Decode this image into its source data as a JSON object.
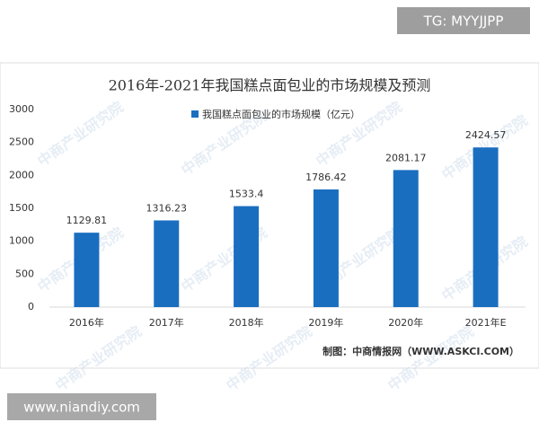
{
  "chart_data": {
    "type": "bar",
    "title": "2016年-2021年我国糕点面包业的市场规模及预测",
    "legend_label": "我国糕点面包业的市场规模（亿元）",
    "categories": [
      "2016年",
      "2017年",
      "2018年",
      "2019年",
      "2020年",
      "2021年E"
    ],
    "values": [
      1129.81,
      1316.23,
      1533.4,
      1786.42,
      2081.17,
      2424.57
    ],
    "color": "#1a6ec0",
    "ylim": [
      0,
      3000
    ],
    "yticks": [
      0,
      500,
      1000,
      1500,
      2000,
      2500,
      3000
    ],
    "grid": false,
    "source": "制图：中商情报网（WWW.ASKCI.COM）",
    "watermark": "中商产业研究院"
  },
  "overlays": {
    "top_tag": "TG: MYYJJPP",
    "bottom_tag": "www.niandiy.com"
  }
}
